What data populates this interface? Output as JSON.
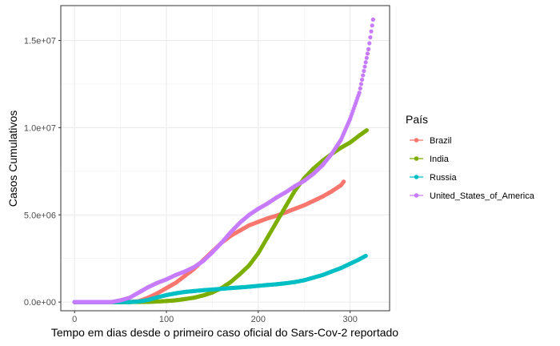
{
  "chart_data": {
    "type": "scatter",
    "title": "",
    "xlabel": "Tempo em dias desde o primeiro caso oficial do Sars-Cov-2 reportado",
    "ylabel": "Casos Cumulativos",
    "xlim": [
      -15,
      343
    ],
    "ylim": [
      -500000,
      17000000
    ],
    "x_ticks": [
      0,
      100,
      200,
      300
    ],
    "x_tick_labels": [
      "0",
      "100",
      "200",
      "300"
    ],
    "y_ticks": [
      0,
      5000000,
      10000000,
      15000000
    ],
    "y_tick_labels": [
      "0.0e+00",
      "5.0e+06",
      "1.0e+07",
      "1.5e+07"
    ],
    "grid": true,
    "legend": {
      "title": "País",
      "position": "right",
      "entries": [
        "Brazil",
        "India",
        "Russia",
        "United_States_of_America"
      ]
    },
    "series": [
      {
        "name": "Brazil",
        "color": "#F8766D",
        "points": [
          [
            0,
            0
          ],
          [
            55,
            0
          ],
          [
            60,
            5000
          ],
          [
            70,
            50000
          ],
          [
            80,
            250000
          ],
          [
            90,
            500000
          ],
          [
            100,
            800000
          ],
          [
            110,
            1100000
          ],
          [
            120,
            1500000
          ],
          [
            130,
            1900000
          ],
          [
            140,
            2400000
          ],
          [
            150,
            2900000
          ],
          [
            160,
            3400000
          ],
          [
            170,
            3800000
          ],
          [
            180,
            4100000
          ],
          [
            190,
            4400000
          ],
          [
            200,
            4600000
          ],
          [
            210,
            4800000
          ],
          [
            220,
            4950000
          ],
          [
            230,
            5150000
          ],
          [
            240,
            5350000
          ],
          [
            250,
            5550000
          ],
          [
            260,
            5800000
          ],
          [
            270,
            6050000
          ],
          [
            280,
            6350000
          ],
          [
            290,
            6700000
          ],
          [
            293,
            6900000
          ]
        ]
      },
      {
        "name": "India",
        "color": "#7CAE00",
        "points": [
          [
            0,
            0
          ],
          [
            60,
            0
          ],
          [
            70,
            3000
          ],
          [
            80,
            10000
          ],
          [
            90,
            30000
          ],
          [
            100,
            60000
          ],
          [
            110,
            100000
          ],
          [
            120,
            170000
          ],
          [
            130,
            250000
          ],
          [
            140,
            380000
          ],
          [
            150,
            550000
          ],
          [
            160,
            800000
          ],
          [
            170,
            1150000
          ],
          [
            180,
            1600000
          ],
          [
            190,
            2100000
          ],
          [
            200,
            2800000
          ],
          [
            210,
            3700000
          ],
          [
            220,
            4600000
          ],
          [
            230,
            5500000
          ],
          [
            240,
            6400000
          ],
          [
            250,
            7100000
          ],
          [
            260,
            7650000
          ],
          [
            270,
            8100000
          ],
          [
            280,
            8500000
          ],
          [
            290,
            8850000
          ],
          [
            300,
            9150000
          ],
          [
            310,
            9550000
          ],
          [
            318,
            9850000
          ]
        ]
      },
      {
        "name": "Russia",
        "color": "#00BFC4",
        "points": [
          [
            0,
            0
          ],
          [
            60,
            0
          ],
          [
            70,
            30000
          ],
          [
            80,
            120000
          ],
          [
            90,
            270000
          ],
          [
            100,
            400000
          ],
          [
            110,
            500000
          ],
          [
            120,
            580000
          ],
          [
            130,
            630000
          ],
          [
            140,
            680000
          ],
          [
            150,
            720000
          ],
          [
            160,
            760000
          ],
          [
            170,
            800000
          ],
          [
            180,
            840000
          ],
          [
            190,
            880000
          ],
          [
            200,
            930000
          ],
          [
            210,
            980000
          ],
          [
            220,
            1020000
          ],
          [
            230,
            1080000
          ],
          [
            240,
            1150000
          ],
          [
            250,
            1250000
          ],
          [
            260,
            1400000
          ],
          [
            270,
            1550000
          ],
          [
            280,
            1750000
          ],
          [
            290,
            1950000
          ],
          [
            300,
            2200000
          ],
          [
            310,
            2450000
          ],
          [
            317,
            2650000
          ]
        ]
      },
      {
        "name": "United_States_of_America",
        "color": "#C77CFF",
        "points": [
          [
            0,
            0
          ],
          [
            40,
            0
          ],
          [
            50,
            100000
          ],
          [
            60,
            250000
          ],
          [
            70,
            550000
          ],
          [
            80,
            850000
          ],
          [
            90,
            1100000
          ],
          [
            100,
            1300000
          ],
          [
            110,
            1550000
          ],
          [
            120,
            1750000
          ],
          [
            130,
            2000000
          ],
          [
            140,
            2350000
          ],
          [
            150,
            2850000
          ],
          [
            160,
            3400000
          ],
          [
            170,
            4000000
          ],
          [
            180,
            4550000
          ],
          [
            190,
            5000000
          ],
          [
            200,
            5350000
          ],
          [
            210,
            5650000
          ],
          [
            220,
            6000000
          ],
          [
            230,
            6300000
          ],
          [
            240,
            6650000
          ],
          [
            250,
            6950000
          ],
          [
            260,
            7350000
          ],
          [
            270,
            7850000
          ],
          [
            280,
            8500000
          ],
          [
            290,
            9300000
          ],
          [
            300,
            10500000
          ],
          [
            310,
            12000000
          ],
          [
            320,
            14500000
          ],
          [
            325,
            16200000
          ]
        ]
      }
    ]
  }
}
